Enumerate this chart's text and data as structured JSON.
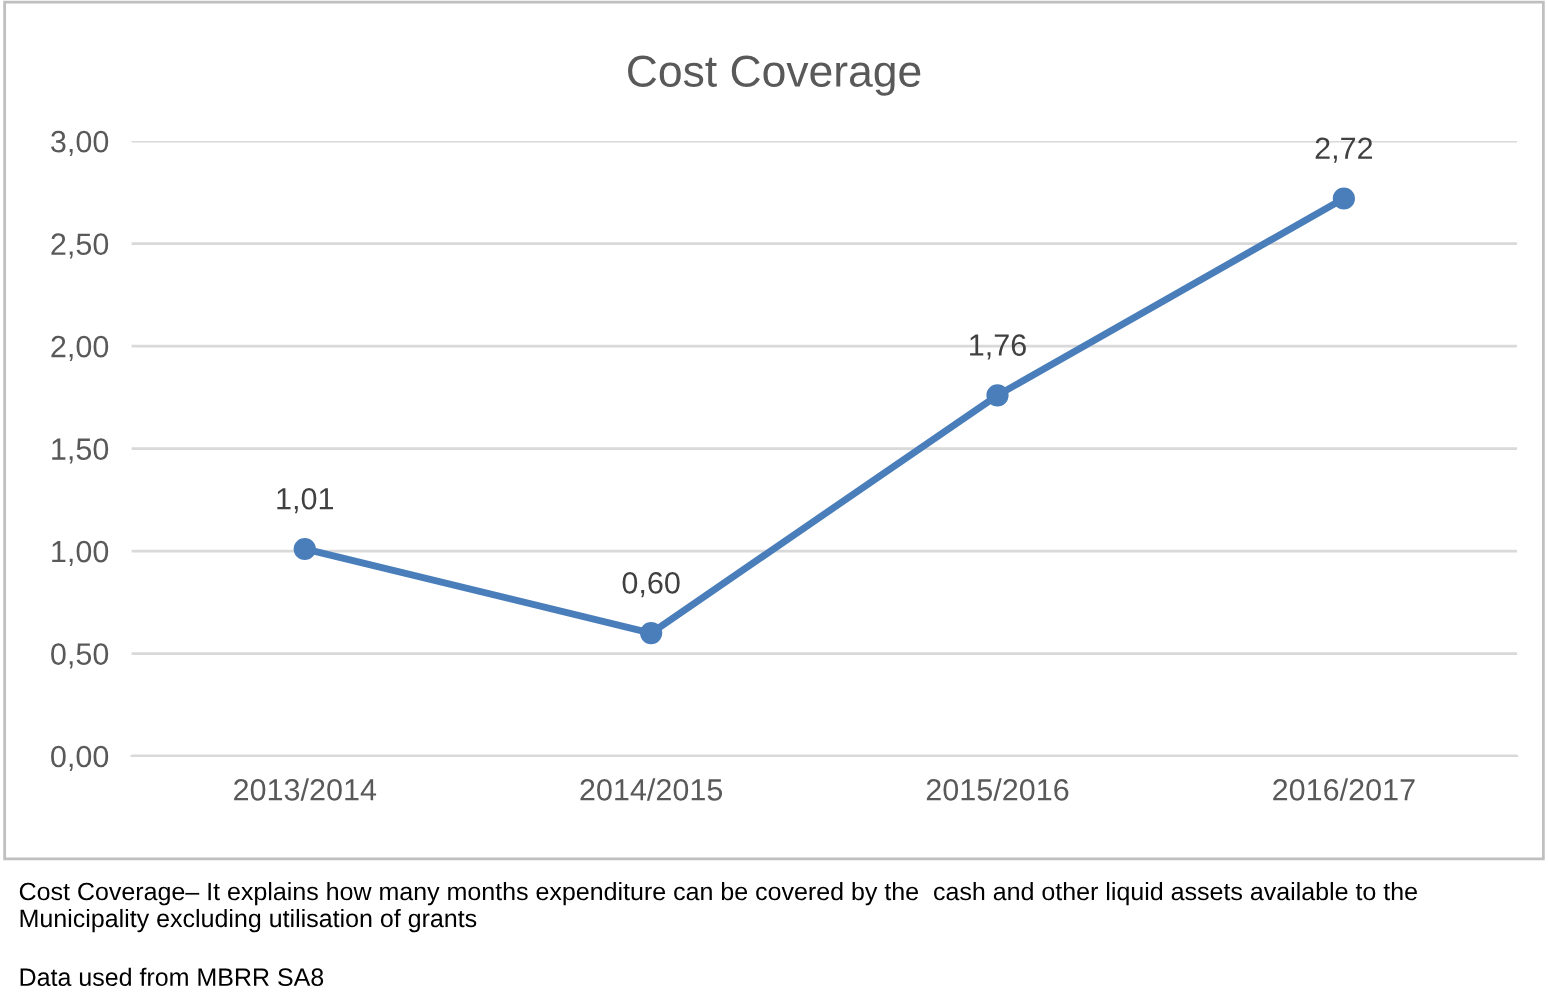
{
  "chart_data": {
    "type": "line",
    "title": "Cost Coverage",
    "categories": [
      "2013/2014",
      "2014/2015",
      "2015/2016",
      "2016/2017"
    ],
    "series": [
      {
        "color": "#4a7ebb",
        "values": [
          1.01,
          0.6,
          1.76,
          2.72
        ],
        "value_labels": [
          "1,01",
          "0,60",
          "1,76",
          "2,72"
        ]
      }
    ],
    "ylim": [
      0,
      3
    ],
    "yticks": [
      {
        "value": 0,
        "label": "0,00"
      },
      {
        "value": 0.5,
        "label": "0,50"
      },
      {
        "value": 1,
        "label": "1,00"
      },
      {
        "value": 1.5,
        "label": "1,50"
      },
      {
        "value": 2,
        "label": "2,00"
      },
      {
        "value": 2.5,
        "label": "2,50"
      },
      {
        "value": 3,
        "label": "3,00"
      }
    ],
    "grid": "y",
    "marker": "circle",
    "line_style": "solid",
    "legend": false,
    "annotations": [
      "Cost Coverage– It explains how many months expenditure can be covered by the  cash and other liquid assets available to the Municipality excluding utilisation of grants",
      "Data used from MBRR SA8"
    ]
  }
}
